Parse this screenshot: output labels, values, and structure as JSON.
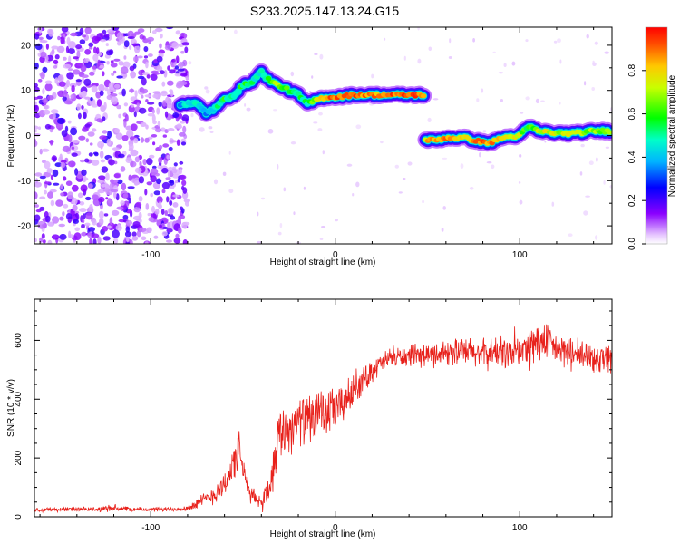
{
  "title": "S233.2025.147.13.24.G15",
  "chart_data": [
    {
      "type": "heatmap",
      "xlabel": "Height of straight line (km)",
      "ylabel": "Frequency (Hz)",
      "xlim": [
        -163,
        150
      ],
      "ylim": [
        -24,
        24
      ],
      "xticks": [
        -100,
        0,
        100
      ],
      "xtick_labels": [
        "-100",
        "0",
        "100"
      ],
      "yticks": [
        -20,
        -10,
        0,
        10,
        20
      ],
      "ytick_labels": [
        "-20",
        "-10",
        "0",
        "10",
        "20"
      ],
      "colorbar": {
        "label": "Normalized spectral amplitude",
        "range": [
          0.0,
          1.0
        ],
        "ticks": [
          0.0,
          0.2,
          0.4,
          0.6,
          0.8
        ],
        "tick_labels": [
          "0.0",
          "0.2",
          "0.4",
          "0.6",
          "0.8"
        ],
        "colormap": "rainbow (violet-blue-cyan-green-yellow-red)"
      },
      "noise_region_x": [
        -163,
        -80
      ],
      "trace": {
        "x": [
          -84,
          -75,
          -70,
          -65,
          -60,
          -55,
          -50,
          -45,
          -40,
          -35,
          -30,
          -25,
          -20,
          -15,
          -10,
          -5,
          0,
          10,
          20,
          30,
          40,
          49,
          49,
          55,
          60,
          70,
          80,
          85,
          90,
          100,
          105,
          110,
          120,
          130,
          140,
          150
        ],
        "y": [
          7,
          7,
          5,
          6,
          8,
          9,
          11,
          12,
          14,
          12,
          11,
          10,
          9,
          7,
          8,
          8.5,
          8.5,
          9,
          9,
          9,
          9,
          9,
          -1,
          -1,
          -0.5,
          -0.5,
          -1.5,
          -1.5,
          -0.5,
          0,
          2,
          1,
          0.5,
          0.5,
          1,
          1
        ],
        "amplitude": [
          0.4,
          0.5,
          0.4,
          0.45,
          0.55,
          0.5,
          0.55,
          0.5,
          0.45,
          0.6,
          0.7,
          0.6,
          0.55,
          0.5,
          0.7,
          0.85,
          0.9,
          0.9,
          0.85,
          0.9,
          0.9,
          0.9,
          0.8,
          0.85,
          0.85,
          0.8,
          0.9,
          0.85,
          0.8,
          0.7,
          0.55,
          0.75,
          0.7,
          0.75,
          0.65,
          0.7
        ]
      }
    },
    {
      "type": "line",
      "xlabel": "Height of straight line (km)",
      "ylabel": "SNR (10 * v/v)",
      "xlim": [
        -163,
        150
      ],
      "ylim": [
        0,
        740
      ],
      "xticks": [
        -100,
        0,
        100
      ],
      "xtick_labels": [
        "-100",
        "0",
        "100"
      ],
      "yticks": [
        0,
        200,
        400,
        600
      ],
      "ytick_labels": [
        "0",
        "200",
        "400",
        "600"
      ],
      "color": "#e8211b",
      "series": [
        {
          "x": [
            -163,
            -150,
            -140,
            -130,
            -120,
            -110,
            -100,
            -90,
            -80,
            -75,
            -70,
            -65,
            -60,
            -55,
            -52,
            -50,
            -48,
            -45,
            -40,
            -35,
            -32,
            -30,
            -25,
            -20,
            -15,
            -10,
            -5,
            0,
            5,
            10,
            15,
            20,
            25,
            30,
            40,
            50,
            60,
            70,
            80,
            90,
            100,
            110,
            120,
            130,
            140,
            150
          ],
          "y": [
            25,
            25,
            25,
            25,
            30,
            25,
            25,
            25,
            30,
            45,
            60,
            80,
            110,
            180,
            230,
            160,
            110,
            70,
            50,
            110,
            240,
            290,
            300,
            330,
            330,
            340,
            350,
            360,
            390,
            430,
            460,
            500,
            520,
            540,
            545,
            550,
            560,
            560,
            555,
            560,
            560,
            600,
            570,
            550,
            540,
            545
          ],
          "spread": [
            8,
            8,
            8,
            8,
            12,
            8,
            8,
            8,
            10,
            20,
            25,
            35,
            45,
            60,
            60,
            55,
            40,
            30,
            20,
            60,
            90,
            90,
            90,
            80,
            80,
            80,
            80,
            75,
            65,
            55,
            45,
            40,
            35,
            35,
            35,
            40,
            45,
            50,
            50,
            55,
            60,
            70,
            55,
            55,
            55,
            55
          ]
        }
      ]
    }
  ]
}
